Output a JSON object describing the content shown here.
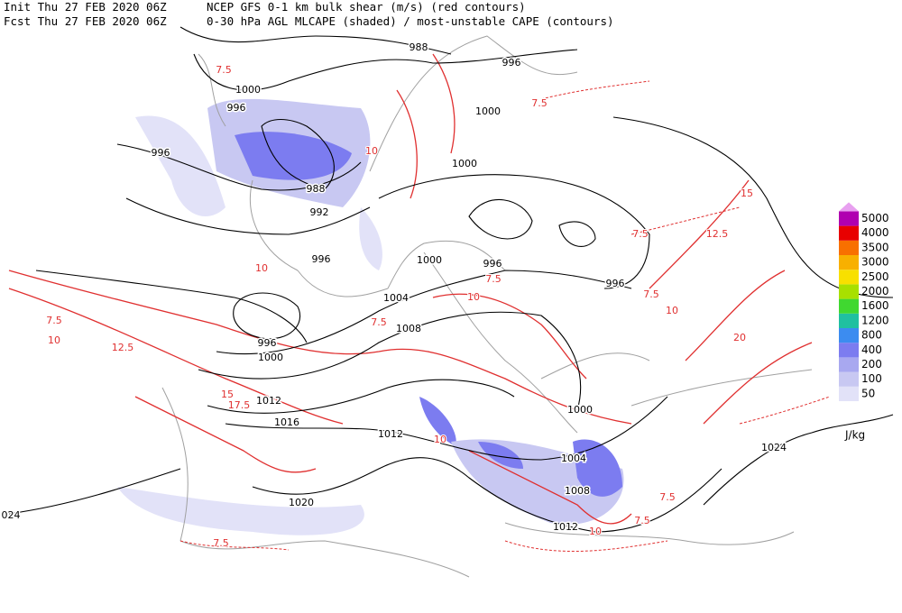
{
  "header": {
    "init": "Init  Thu 27 FEB 2020 06Z",
    "model": "NCEP GFS 0-1 km bulk shear (m/s) (red contours)",
    "fcst": "Fcst Thu 27 FEB 2020 06Z",
    "field": "0-30 hPa AGL MLCAPE (shaded) / most-unstable CAPE (contours)"
  },
  "map": {
    "isobar_labels": [
      "988",
      "996",
      "1000",
      "996",
      "1000",
      "996",
      "1000",
      "988",
      "992",
      "996",
      "996",
      "1000",
      "996",
      "1004",
      "1008",
      "996",
      "1000",
      "1012",
      "1016",
      "1012",
      "1000",
      "1004",
      "1008",
      "1012",
      "1020",
      "1024",
      "024"
    ],
    "shear_labels": [
      "7.5",
      "7.5",
      "10",
      "10",
      "10",
      "7.5",
      "7.5",
      "7.5",
      "10",
      "12.5",
      "12.5",
      "7.5",
      "10",
      "7.5",
      "20",
      "15",
      "17.5",
      "7.5",
      "7.5",
      "10",
      "7.5",
      "15",
      "10"
    ]
  },
  "legend": {
    "levels": [
      50,
      100,
      200,
      400,
      800,
      1200,
      1600,
      2000,
      2500,
      3000,
      3500,
      4000,
      5000
    ],
    "colors": [
      "#e2e2f8",
      "#c8c8f2",
      "#a8a8f0",
      "#7c7cf0",
      "#3c8cf0",
      "#20c0a0",
      "#40d830",
      "#a8e000",
      "#f8e000",
      "#f8b000",
      "#f87000",
      "#e80000",
      "#b000b0"
    ],
    "over_color": "#e8a0f0",
    "unit": "J/kg"
  }
}
